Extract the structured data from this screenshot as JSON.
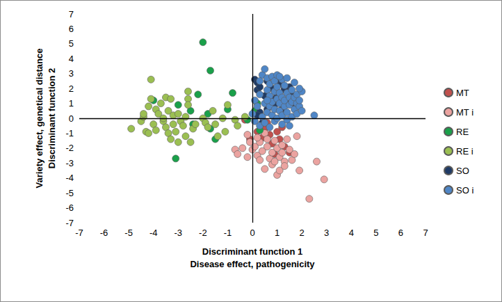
{
  "chart_data": {
    "type": "scatter",
    "xlabel": "Discriminant function 1\nDisease effect, pathogenicity",
    "ylabel": "Variety effect, genetical distance\nDiscriminant function 2",
    "xlim": [
      -7,
      7
    ],
    "xticks": [
      -7,
      -6,
      -5,
      -4,
      -3,
      -2,
      -1,
      0,
      1,
      2,
      3,
      4,
      5,
      6,
      7
    ],
    "ylim": [
      -7,
      7
    ],
    "yticks": [
      -7,
      -6,
      -5,
      -4,
      -3,
      -2,
      -1,
      0,
      1,
      2,
      3,
      4,
      5,
      6,
      7
    ],
    "grid": false,
    "legend": "right",
    "marker": "circle",
    "series": [
      {
        "name": "MT",
        "color": "#c0504d",
        "values": [
          [
            -0.3,
            -0.1
          ],
          [
            0.2,
            -0.9
          ],
          [
            0.4,
            -1.3
          ],
          [
            0.5,
            -0.7
          ],
          [
            0.7,
            -1.1
          ],
          [
            0.8,
            -1.7
          ],
          [
            1.0,
            -0.9
          ],
          [
            1.1,
            -1.4
          ],
          [
            1.3,
            -1.9
          ],
          [
            1.5,
            -2.3
          ],
          [
            1.2,
            -0.6
          ],
          [
            0.9,
            -2.4
          ],
          [
            -0.1,
            -1.4
          ],
          [
            0.6,
            -0.3
          ]
        ]
      },
      {
        "name": "MT i",
        "color": "#eba3a0",
        "values": [
          [
            -0.7,
            -2.1
          ],
          [
            -0.6,
            -2.4
          ],
          [
            -0.4,
            -2.0
          ],
          [
            -0.2,
            -1.1
          ],
          [
            -0.1,
            -1.6
          ],
          [
            0.0,
            -2.1
          ],
          [
            0.1,
            -1.9
          ],
          [
            0.2,
            -2.5
          ],
          [
            0.3,
            -1.6
          ],
          [
            0.3,
            -2.8
          ],
          [
            0.4,
            -2.2
          ],
          [
            0.5,
            -1.0
          ],
          [
            0.5,
            -3.4
          ],
          [
            0.6,
            -1.9
          ],
          [
            0.7,
            -2.7
          ],
          [
            0.8,
            -2.3
          ],
          [
            0.8,
            -3.1
          ],
          [
            0.9,
            -1.5
          ],
          [
            1.0,
            -2.0
          ],
          [
            1.0,
            -3.8
          ],
          [
            1.1,
            -2.6
          ],
          [
            1.1,
            -3.5
          ],
          [
            1.2,
            -1.8
          ],
          [
            1.3,
            -2.9
          ],
          [
            1.3,
            -3.2
          ],
          [
            1.4,
            -1.4
          ],
          [
            1.5,
            -2.1
          ],
          [
            1.6,
            -2.8
          ],
          [
            1.7,
            -2.4
          ],
          [
            1.8,
            -1.2
          ],
          [
            1.9,
            -3.5
          ],
          [
            2.3,
            -5.4
          ],
          [
            2.6,
            -2.9
          ],
          [
            2.9,
            -4.1
          ],
          [
            0.2,
            -1.3
          ],
          [
            -0.2,
            -2.6
          ],
          [
            0.6,
            -1.4
          ],
          [
            1.2,
            -2.3
          ],
          [
            0.9,
            -2.9
          ]
        ]
      },
      {
        "name": "RE",
        "color": "#1aa04a",
        "values": [
          [
            -2.0,
            5.1
          ],
          [
            -1.7,
            3.2
          ],
          [
            -2.2,
            1.6
          ],
          [
            -2.5,
            0.5
          ],
          [
            -1.8,
            0.3
          ],
          [
            -1.7,
            -0.7
          ],
          [
            -1.5,
            -1.4
          ],
          [
            -3.1,
            -2.7
          ],
          [
            -4.0,
            1.2
          ],
          [
            -1.0,
            0.6
          ],
          [
            -0.8,
            1.7
          ],
          [
            -0.2,
            -0.1
          ],
          [
            0.1,
            0.5
          ],
          [
            0.2,
            1.0
          ],
          [
            -2.4,
            -0.4
          ],
          [
            0.3,
            -0.8
          ],
          [
            -3.0,
            0.9
          ]
        ]
      },
      {
        "name": "RE i",
        "color": "#9bbf52",
        "values": [
          [
            -4.9,
            -0.7
          ],
          [
            -4.5,
            -0.2
          ],
          [
            -4.4,
            0.1
          ],
          [
            -4.3,
            -0.9
          ],
          [
            -4.2,
            -1.0
          ],
          [
            -4.2,
            0.8
          ],
          [
            -4.1,
            1.3
          ],
          [
            -4.1,
            2.6
          ],
          [
            -4.0,
            -0.4
          ],
          [
            -3.9,
            0.6
          ],
          [
            -3.8,
            0.3
          ],
          [
            -3.7,
            1.0
          ],
          [
            -3.6,
            -0.2
          ],
          [
            -3.5,
            -0.6
          ],
          [
            -3.5,
            1.4
          ],
          [
            -3.4,
            -1.0
          ],
          [
            -3.4,
            0.5
          ],
          [
            -3.3,
            1.3
          ],
          [
            -3.3,
            -1.4
          ],
          [
            -3.2,
            0.2
          ],
          [
            -3.2,
            -0.4
          ],
          [
            -3.1,
            -0.9
          ],
          [
            -3.0,
            0.3
          ],
          [
            -3.0,
            -1.6
          ],
          [
            -2.9,
            -0.2
          ],
          [
            -2.8,
            -0.5
          ],
          [
            -2.7,
            -1.2
          ],
          [
            -2.7,
            0.1
          ],
          [
            -2.6,
            1.8
          ],
          [
            -2.6,
            1.3
          ],
          [
            -2.6,
            0.9
          ],
          [
            -2.5,
            -1.6
          ],
          [
            -2.4,
            -0.7
          ],
          [
            -2.3,
            -0.4
          ],
          [
            -2.0,
            0.0
          ],
          [
            -1.9,
            -0.3
          ],
          [
            -1.8,
            -0.6
          ],
          [
            -1.6,
            0.5
          ],
          [
            -1.5,
            -0.4
          ],
          [
            -1.4,
            -1.2
          ],
          [
            -1.2,
            0.0
          ],
          [
            -1.1,
            -0.9
          ],
          [
            -1.0,
            0.9
          ],
          [
            -0.7,
            -0.1
          ],
          [
            -0.6,
            -0.5
          ],
          [
            -0.3,
            0.1
          ],
          [
            -3.6,
            0.0
          ],
          [
            -4.4,
            0.3
          ],
          [
            -3.9,
            -0.8
          ]
        ]
      },
      {
        "name": "SO",
        "color": "#1f3b66",
        "values": [
          [
            0.1,
            2.6
          ],
          [
            0.2,
            2.4
          ],
          [
            0.2,
            1.9
          ],
          [
            0.3,
            2.1
          ],
          [
            0.3,
            0.4
          ],
          [
            0.5,
            1.5
          ],
          [
            0.6,
            2.5
          ],
          [
            0.7,
            1.2
          ],
          [
            0.8,
            2.0
          ],
          [
            0.9,
            0.9
          ],
          [
            1.0,
            1.6
          ],
          [
            1.1,
            2.3
          ],
          [
            1.2,
            0.6
          ],
          [
            1.3,
            1.9
          ],
          [
            1.4,
            1.2
          ],
          [
            1.5,
            2.1
          ],
          [
            1.6,
            1.5
          ],
          [
            0.4,
            -0.3
          ],
          [
            0.6,
            0.6
          ],
          [
            1.7,
            0.9
          ],
          [
            0.2,
            0.2
          ],
          [
            1.0,
            2.6
          ],
          [
            1.3,
            2.0
          ],
          [
            0.8,
            1.3
          ]
        ]
      },
      {
        "name": "SO i",
        "color": "#4f86c6",
        "values": [
          [
            0.0,
            0.3
          ],
          [
            0.1,
            -0.2
          ],
          [
            0.1,
            1.2
          ],
          [
            0.2,
            0.8
          ],
          [
            0.3,
            -0.5
          ],
          [
            0.3,
            1.6
          ],
          [
            0.4,
            0.1
          ],
          [
            0.4,
            2.9
          ],
          [
            0.5,
            3.3
          ],
          [
            0.5,
            1.0
          ],
          [
            0.5,
            -0.3
          ],
          [
            0.6,
            0.4
          ],
          [
            0.6,
            1.9
          ],
          [
            0.6,
            2.7
          ],
          [
            0.7,
            -0.6
          ],
          [
            0.7,
            0.8
          ],
          [
            0.7,
            1.5
          ],
          [
            0.7,
            2.3
          ],
          [
            0.8,
            0.2
          ],
          [
            0.8,
            1.1
          ],
          [
            0.8,
            2.8
          ],
          [
            0.9,
            -0.2
          ],
          [
            0.9,
            0.6
          ],
          [
            0.9,
            1.8
          ],
          [
            0.9,
            2.5
          ],
          [
            1.0,
            0.0
          ],
          [
            1.0,
            1.3
          ],
          [
            1.0,
            2.1
          ],
          [
            1.0,
            2.9
          ],
          [
            1.1,
            0.5
          ],
          [
            1.1,
            1.0
          ],
          [
            1.1,
            1.7
          ],
          [
            1.2,
            -0.4
          ],
          [
            1.2,
            0.2
          ],
          [
            1.2,
            1.4
          ],
          [
            1.2,
            2.6
          ],
          [
            1.3,
            0.8
          ],
          [
            1.3,
            1.2
          ],
          [
            1.3,
            2.2
          ],
          [
            1.4,
            -0.1
          ],
          [
            1.4,
            0.4
          ],
          [
            1.4,
            1.7
          ],
          [
            1.4,
            2.7
          ],
          [
            1.5,
            0.9
          ],
          [
            1.5,
            1.4
          ],
          [
            1.5,
            -0.5
          ],
          [
            1.6,
            0.1
          ],
          [
            1.6,
            1.1
          ],
          [
            1.6,
            1.9
          ],
          [
            1.7,
            0.6
          ],
          [
            1.7,
            1.4
          ],
          [
            1.7,
            2.4
          ],
          [
            1.8,
            0.3
          ],
          [
            1.8,
            1.0
          ],
          [
            1.8,
            1.6
          ],
          [
            1.9,
            0.8
          ],
          [
            1.9,
            1.2
          ],
          [
            2.0,
            0.5
          ],
          [
            2.0,
            1.8
          ],
          [
            2.5,
            0.2
          ],
          [
            1.1,
            2.8
          ],
          [
            0.3,
            2.5
          ],
          [
            0.6,
            1.2
          ],
          [
            1.9,
            2.0
          ]
        ]
      }
    ]
  }
}
